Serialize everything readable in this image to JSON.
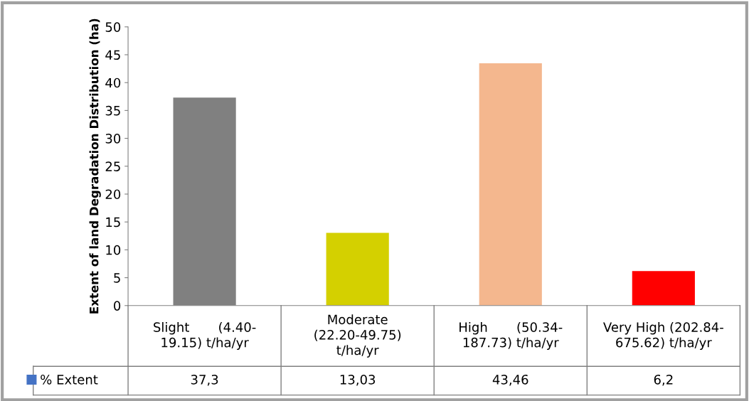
{
  "chart_data": {
    "type": "bar",
    "ylabel": "Extent of land Degradation Distribution (ha)",
    "categories": [
      "Slight       (4.40-\n19.15) t/ha/yr",
      "Moderate\n(22.20-49.75)\nt/ha/yr",
      "High       (50.34-\n187.73) t/ha/yr",
      "Very High (202.84-\n675.62) t/ha/yr"
    ],
    "series": [
      {
        "name": "% Extent",
        "color": "#4472c4",
        "colors": [
          "#808080",
          "#d4d000",
          "#f4b78e",
          "#ff0000"
        ],
        "values": [
          37.3,
          13.03,
          43.46,
          6.2
        ],
        "value_labels": [
          "37,3",
          "13,03",
          "43,46",
          "6,2"
        ]
      }
    ],
    "ylim": [
      0,
      50
    ],
    "yticks": [
      0,
      5,
      10,
      15,
      20,
      25,
      30,
      35,
      40,
      45,
      50
    ],
    "grid": false,
    "legend": "bottom"
  }
}
